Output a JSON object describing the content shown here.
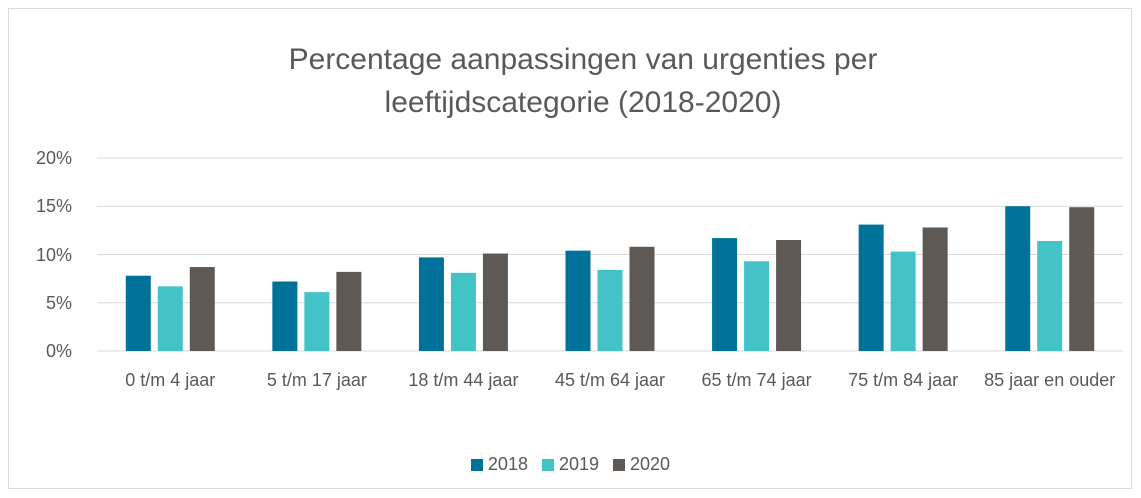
{
  "chart_data": {
    "type": "bar",
    "title": "Percentage aanpassingen van urgenties per leeftijdscategorie (2018-2020)",
    "categories": [
      "0 t/m 4 jaar",
      "5 t/m 17 jaar",
      "18 t/m 44 jaar",
      "45 t/m 64 jaar",
      "65 t/m 74 jaar",
      "75 t/m 84 jaar",
      "85 jaar en ouder"
    ],
    "series": [
      {
        "name": "2018",
        "color": "#00729a",
        "values": [
          7.8,
          7.2,
          9.7,
          10.4,
          11.7,
          13.1,
          15.0
        ]
      },
      {
        "name": "2019",
        "color": "#44c3c7",
        "values": [
          6.7,
          6.1,
          8.1,
          8.4,
          9.3,
          10.3,
          11.4
        ]
      },
      {
        "name": "2020",
        "color": "#5e5955",
        "values": [
          8.7,
          8.2,
          10.1,
          10.8,
          11.5,
          12.8,
          14.9
        ]
      }
    ],
    "ylim": [
      0,
      20
    ],
    "yticks": [
      {
        "value": 0,
        "label": "0%"
      },
      {
        "value": 5,
        "label": "5%"
      },
      {
        "value": 10,
        "label": "10%"
      },
      {
        "value": 15,
        "label": "15%"
      },
      {
        "value": 20,
        "label": "20%"
      }
    ],
    "grid": true,
    "legend": "bottom"
  }
}
